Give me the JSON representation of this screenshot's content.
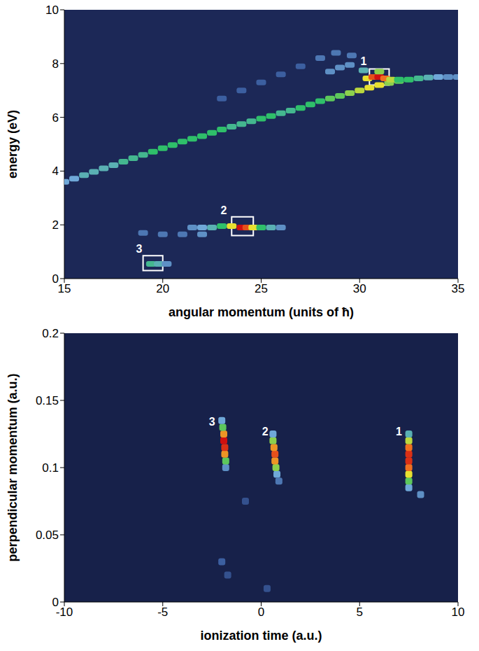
{
  "chart_data": [
    {
      "type": "heatmap",
      "xlabel": "angular momentum (units of ħ)",
      "ylabel": "energy (eV)",
      "xlim": [
        15,
        35
      ],
      "ylim": [
        0,
        10
      ],
      "xticks": [
        15,
        20,
        25,
        30,
        35
      ],
      "yticks": [
        0,
        2,
        4,
        6,
        8,
        10
      ],
      "grid": false,
      "cells": [
        [
          15,
          3.6,
          0.35
        ],
        [
          15.5,
          3.72,
          0.35
        ],
        [
          16,
          3.85,
          0.4
        ],
        [
          16.5,
          3.97,
          0.4
        ],
        [
          17,
          4.1,
          0.4
        ],
        [
          17.5,
          4.22,
          0.4
        ],
        [
          18,
          4.35,
          0.45
        ],
        [
          18.5,
          4.48,
          0.45
        ],
        [
          19,
          4.6,
          0.45
        ],
        [
          19.5,
          4.72,
          0.5
        ],
        [
          20,
          4.85,
          0.5
        ],
        [
          20.5,
          4.97,
          0.5
        ],
        [
          21,
          5.1,
          0.5
        ],
        [
          21.5,
          5.2,
          0.5
        ],
        [
          22,
          5.3,
          0.5
        ],
        [
          22.5,
          5.42,
          0.5
        ],
        [
          23,
          5.55,
          0.5
        ],
        [
          23.5,
          5.65,
          0.45
        ],
        [
          24,
          5.75,
          0.45
        ],
        [
          24.5,
          5.85,
          0.45
        ],
        [
          25,
          5.95,
          0.5
        ],
        [
          25.5,
          6.05,
          0.5
        ],
        [
          26,
          6.15,
          0.45
        ],
        [
          26.5,
          6.25,
          0.45
        ],
        [
          27,
          6.35,
          0.5
        ],
        [
          27.5,
          6.48,
          0.5
        ],
        [
          28,
          6.6,
          0.5
        ],
        [
          28.5,
          6.7,
          0.55
        ],
        [
          29,
          6.8,
          0.55
        ],
        [
          29.5,
          6.9,
          0.6
        ],
        [
          30,
          7.0,
          0.65
        ],
        [
          30.5,
          7.1,
          0.7
        ],
        [
          31,
          7.2,
          0.7
        ],
        [
          31.5,
          7.28,
          0.6
        ],
        [
          32,
          7.35,
          0.55
        ],
        [
          32.5,
          7.4,
          0.5
        ],
        [
          33,
          7.45,
          0.45
        ],
        [
          33.5,
          7.48,
          0.4
        ],
        [
          34,
          7.5,
          0.35
        ],
        [
          34.5,
          7.5,
          0.3
        ],
        [
          35,
          7.5,
          0.3
        ],
        [
          30.2,
          7.75,
          0.4
        ],
        [
          30.4,
          7.45,
          0.7
        ],
        [
          30.7,
          7.5,
          0.9
        ],
        [
          31,
          7.5,
          1
        ],
        [
          31.3,
          7.45,
          0.85
        ],
        [
          31,
          7.7,
          0.6
        ],
        [
          31.6,
          7.4,
          0.65
        ],
        [
          32,
          7.4,
          0.5
        ],
        [
          23,
          6.7,
          0.2
        ],
        [
          24,
          7.0,
          0.2
        ],
        [
          25,
          7.3,
          0.2
        ],
        [
          26,
          7.6,
          0.2
        ],
        [
          27,
          7.9,
          0.2
        ],
        [
          28,
          8.2,
          0.25
        ],
        [
          28.8,
          8.4,
          0.25
        ],
        [
          29.6,
          8.3,
          0.25
        ],
        [
          28.5,
          7.7,
          0.3
        ],
        [
          29,
          7.85,
          0.3
        ],
        [
          29.5,
          7.95,
          0.3
        ],
        [
          19,
          1.7,
          0.25
        ],
        [
          20,
          1.65,
          0.25
        ],
        [
          21,
          1.65,
          0.25
        ],
        [
          22,
          1.65,
          0.3
        ],
        [
          21.5,
          1.9,
          0.3
        ],
        [
          22,
          1.9,
          0.35
        ],
        [
          22.5,
          1.9,
          0.4
        ],
        [
          23,
          1.95,
          0.5
        ],
        [
          23.5,
          1.95,
          0.7
        ],
        [
          24,
          1.9,
          1
        ],
        [
          24.3,
          1.9,
          0.9
        ],
        [
          24.6,
          1.9,
          0.7
        ],
        [
          25,
          1.9,
          0.5
        ],
        [
          25.5,
          1.9,
          0.4
        ],
        [
          26,
          1.9,
          0.3
        ],
        [
          19.4,
          0.55,
          0.45
        ],
        [
          19.8,
          0.55,
          0.4
        ],
        [
          20.2,
          0.55,
          0.3
        ]
      ],
      "annotations": [
        {
          "text": "1",
          "x": 30.2,
          "y": 8.1,
          "box": [
            [
              30.5,
              31.5
            ],
            [
              7.2,
              7.8
            ]
          ]
        },
        {
          "text": "2",
          "x": 23.1,
          "y": 2.55,
          "box": [
            [
              23.5,
              24.6
            ],
            [
              1.6,
              2.3
            ]
          ]
        },
        {
          "text": "3",
          "x": 18.8,
          "y": 1.1,
          "box": [
            [
              19.0,
              20.0
            ],
            [
              0.3,
              0.85
            ]
          ]
        }
      ]
    },
    {
      "type": "heatmap",
      "xlabel": "ionization time (a.u.)",
      "ylabel": "perpendicular momentum (a.u.)",
      "xlim": [
        -10,
        10
      ],
      "ylim": [
        0,
        0.2
      ],
      "xticks": [
        -10,
        -5,
        0,
        5,
        10
      ],
      "yticks": [
        0,
        0.05,
        0.1,
        0.15,
        0.2
      ],
      "grid": false,
      "cells": [
        [
          -1.8,
          0.1,
          0.3
        ],
        [
          -1.8,
          0.105,
          0.55
        ],
        [
          -1.85,
          0.11,
          0.8
        ],
        [
          -1.85,
          0.115,
          0.95
        ],
        [
          -1.9,
          0.12,
          1
        ],
        [
          -1.9,
          0.125,
          0.8
        ],
        [
          -1.95,
          0.13,
          0.55
        ],
        [
          -2.0,
          0.135,
          0.35
        ],
        [
          0.8,
          0.095,
          0.35
        ],
        [
          0.75,
          0.1,
          0.6
        ],
        [
          0.7,
          0.105,
          0.8
        ],
        [
          0.7,
          0.11,
          0.9
        ],
        [
          0.65,
          0.115,
          0.8
        ],
        [
          0.6,
          0.12,
          0.6
        ],
        [
          0.6,
          0.125,
          0.35
        ],
        [
          7.5,
          0.085,
          0.35
        ],
        [
          7.5,
          0.09,
          0.55
        ],
        [
          7.5,
          0.095,
          0.7
        ],
        [
          7.5,
          0.1,
          0.85
        ],
        [
          7.5,
          0.105,
          0.95
        ],
        [
          7.5,
          0.11,
          0.95
        ],
        [
          7.5,
          0.115,
          0.85
        ],
        [
          7.5,
          0.12,
          0.65
        ],
        [
          7.5,
          0.125,
          0.4
        ],
        [
          -2,
          0.03,
          0.2
        ],
        [
          -1.7,
          0.02,
          0.15
        ],
        [
          0.3,
          0.01,
          0.15
        ],
        [
          8.1,
          0.08,
          0.3
        ],
        [
          -0.8,
          0.075,
          0.15
        ],
        [
          0.9,
          0.09,
          0.25
        ]
      ],
      "annotations": [
        {
          "text": "3",
          "x": -2.5,
          "y": 0.134
        },
        {
          "text": "2",
          "x": 0.2,
          "y": 0.127
        },
        {
          "text": "1",
          "x": 7.0,
          "y": 0.127
        }
      ]
    }
  ]
}
